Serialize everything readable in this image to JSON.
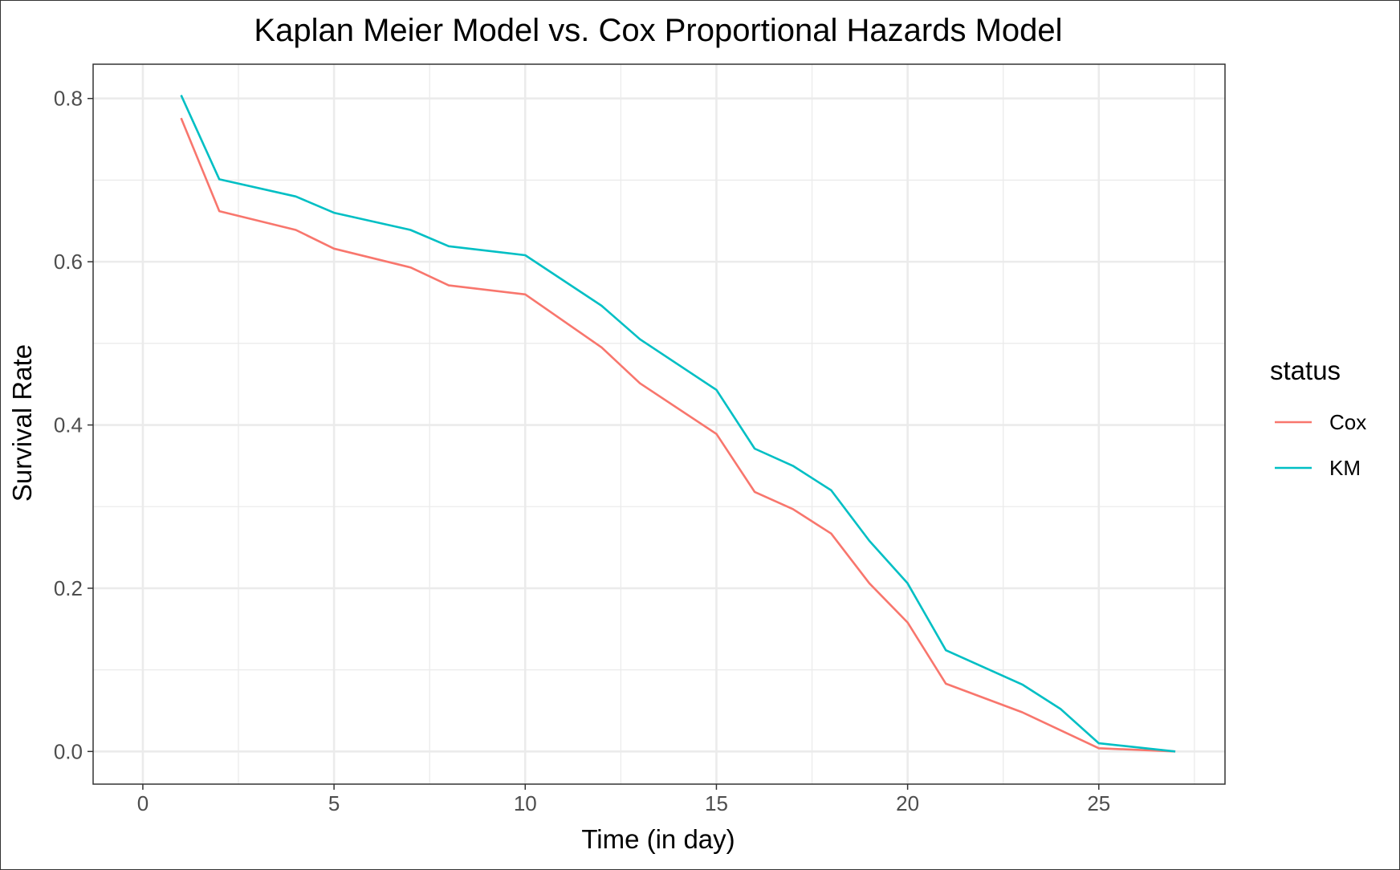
{
  "chart_data": {
    "type": "line",
    "title": "Kaplan Meier Model vs. Cox Proportional Hazards Model",
    "xlabel": "Time (in day)",
    "ylabel": "Survival Rate",
    "xlim": [
      -1.3,
      28.3
    ],
    "ylim": [
      -0.04,
      0.842
    ],
    "x_ticks": [
      0,
      5,
      10,
      15,
      20,
      25
    ],
    "x_tick_labels": [
      "0",
      "5",
      "10",
      "15",
      "20",
      "25"
    ],
    "x_minor_ticks": [
      2.5,
      7.5,
      12.5,
      17.5,
      22.5,
      27.5
    ],
    "y_ticks": [
      0.0,
      0.2,
      0.4,
      0.6,
      0.8
    ],
    "y_tick_labels": [
      "0.0",
      "0.2",
      "0.4",
      "0.6",
      "0.8"
    ],
    "y_minor_ticks": [
      0.1,
      0.3,
      0.5,
      0.7
    ],
    "grid": true,
    "legend_title": "status",
    "legend_position": "right",
    "series": [
      {
        "name": "Cox",
        "color": "#F8766D",
        "x": [
          1,
          2,
          4,
          5,
          7,
          8,
          10,
          12,
          13,
          15,
          16,
          17,
          18,
          19,
          20,
          21,
          23,
          24,
          25,
          27
        ],
        "y": [
          0.776,
          0.662,
          0.639,
          0.616,
          0.593,
          0.571,
          0.56,
          0.495,
          0.451,
          0.389,
          0.318,
          0.297,
          0.267,
          0.206,
          0.158,
          0.083,
          0.048,
          0.026,
          0.004,
          0.0
        ]
      },
      {
        "name": "KM",
        "color": "#00BFC4",
        "x": [
          1,
          2,
          4,
          5,
          7,
          8,
          10,
          12,
          13,
          15,
          16,
          17,
          18,
          19,
          20,
          21,
          23,
          24,
          25,
          27
        ],
        "y": [
          0.804,
          0.701,
          0.68,
          0.66,
          0.639,
          0.619,
          0.608,
          0.546,
          0.505,
          0.443,
          0.371,
          0.35,
          0.32,
          0.258,
          0.206,
          0.124,
          0.082,
          0.052,
          0.01,
          0.0
        ]
      }
    ]
  }
}
